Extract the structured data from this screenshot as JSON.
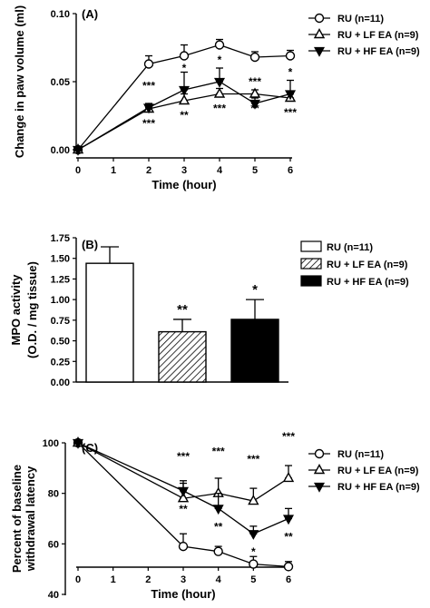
{
  "chart_data": [
    {
      "type": "line",
      "panel_label": "(A)",
      "xlabel": "Time (hour)",
      "ylabel": "Change in paw volume (ml)",
      "xlim": [
        0,
        6
      ],
      "ylim": [
        0,
        0.1
      ],
      "x_ticks": [
        "0",
        "1",
        "2",
        "3",
        "4",
        "5",
        "6"
      ],
      "y_ticks": [
        "0.00",
        "0.05",
        "0.10"
      ],
      "legend_position": "top-right",
      "x": [
        0,
        2,
        3,
        4,
        5,
        6
      ],
      "series": [
        {
          "name": "RU (n=11)",
          "marker": "open-circle",
          "values": [
            0.0,
            0.063,
            0.069,
            0.077,
            0.068,
            0.069
          ],
          "errors": [
            0.002,
            0.006,
            0.008,
            0.004,
            0.004,
            0.004
          ]
        },
        {
          "name": "RU + LF EA (n=9)",
          "marker": "open-triangle-up",
          "values": [
            0.0,
            0.03,
            0.036,
            0.041,
            0.041,
            0.038
          ],
          "errors": [
            0.002,
            0.003,
            0.005,
            0.004,
            0.003,
            0.003
          ],
          "annotations": [
            {
              "x": 2,
              "text": "***"
            },
            {
              "x": 3,
              "text": "**"
            },
            {
              "x": 4,
              "text": "***"
            },
            {
              "x": 5,
              "text": "**"
            },
            {
              "x": 6,
              "text": "***"
            }
          ]
        },
        {
          "name": "RU + HF EA (n=9)",
          "marker": "filled-triangle-down",
          "values": [
            0.0,
            0.031,
            0.044,
            0.05,
            0.034,
            0.041
          ],
          "errors": [
            0.002,
            0.003,
            0.013,
            0.01,
            0.004,
            0.01
          ],
          "annotations": [
            {
              "x": 2,
              "text": "***"
            },
            {
              "x": 3,
              "text": "*"
            },
            {
              "x": 4,
              "text": "*"
            },
            {
              "x": 5,
              "text": "***"
            },
            {
              "x": 6,
              "text": "*"
            }
          ]
        }
      ]
    },
    {
      "type": "bar",
      "panel_label": "(B)",
      "ylabel": "MPO activity (O.D. / mg tissue)",
      "ylim": [
        0,
        1.75
      ],
      "y_ticks": [
        "0.00",
        "0.25",
        "0.50",
        "0.75",
        "1.00",
        "1.25",
        "1.50",
        "1.75"
      ],
      "legend_position": "right",
      "categories": [
        "RU (n=11)",
        "RU + LF EA (n=9)",
        "RU + HF EA (n=9)"
      ],
      "fills": [
        "white",
        "hatched",
        "black"
      ],
      "values": [
        1.44,
        0.61,
        0.76
      ],
      "errors": [
        0.2,
        0.15,
        0.24
      ],
      "annotations": [
        "",
        "**",
        "*"
      ]
    },
    {
      "type": "line",
      "panel_label": "(C)",
      "xlabel": "Time (hour)",
      "ylabel": "Percent of baseline withdrawal latency",
      "xlim": [
        0,
        6
      ],
      "ylim": [
        40,
        100
      ],
      "x_ticks": [
        "0",
        "1",
        "2",
        "3",
        "4",
        "5",
        "6"
      ],
      "y_ticks": [
        "40",
        "60",
        "80",
        "100"
      ],
      "legend_position": "top-right",
      "x": [
        0,
        3,
        4,
        5,
        6
      ],
      "series": [
        {
          "name": "RU (n=11)",
          "marker": "open-circle",
          "values": [
            100,
            59,
            57,
            52,
            51
          ],
          "errors": [
            0.5,
            5,
            2,
            3,
            2
          ]
        },
        {
          "name": "RU + LF EA (n=9)",
          "marker": "open-triangle-up",
          "values": [
            100,
            78,
            80,
            77,
            86
          ],
          "errors": [
            0.5,
            6,
            6,
            5,
            5
          ],
          "annotations": [
            {
              "x": 3,
              "text": "***"
            },
            {
              "x": 4,
              "text": "***"
            },
            {
              "x": 5,
              "text": "***"
            },
            {
              "x": 6,
              "text": "***"
            }
          ]
        },
        {
          "name": "RU + HF EA (n=9)",
          "marker": "filled-triangle-down",
          "values": [
            100,
            81,
            74,
            64,
            70
          ],
          "errors": [
            0.5,
            4,
            6,
            3,
            4
          ],
          "annotations": [
            {
              "x": 3,
              "text": "**"
            },
            {
              "x": 4,
              "text": "**"
            },
            {
              "x": 5,
              "text": "*"
            },
            {
              "x": 6,
              "text": "**"
            }
          ]
        }
      ]
    }
  ]
}
